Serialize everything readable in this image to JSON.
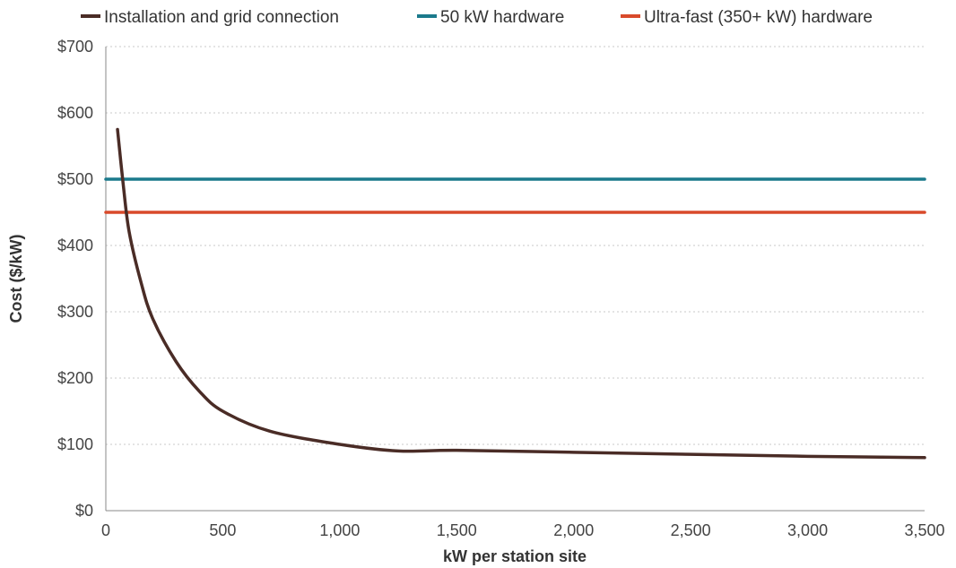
{
  "chart_data": {
    "type": "line",
    "title": "",
    "xlabel": "kW per station site",
    "ylabel": "Cost ($/kW)",
    "xlim": [
      0,
      3500
    ],
    "ylim": [
      0,
      700
    ],
    "x_ticks": [
      0,
      500,
      1000,
      1500,
      2000,
      2500,
      3000,
      3500
    ],
    "x_tick_labels": [
      "0",
      "500",
      "1,000",
      "1,500",
      "2,000",
      "2,500",
      "3,000",
      "3,500"
    ],
    "y_ticks": [
      0,
      100,
      200,
      300,
      400,
      500,
      600,
      700
    ],
    "y_tick_labels": [
      "$0",
      "$100",
      "$200",
      "$300",
      "$400",
      "$500",
      "$600",
      "$700"
    ],
    "grid": true,
    "legend_position": "top",
    "series": [
      {
        "name": "Installation and grid connection",
        "color": "#4a2c26",
        "x": [
          50,
          75,
          100,
          150,
          200,
          300,
          400,
          500,
          700,
          1000,
          1250,
          1500,
          2000,
          2500,
          3000,
          3500
        ],
        "y": [
          575,
          490,
          420,
          345,
          290,
          225,
          180,
          150,
          120,
          100,
          90,
          91,
          88,
          85,
          82,
          80
        ]
      },
      {
        "name": "50 kW hardware",
        "color": "#1b7a8c",
        "x": [
          0,
          3500
        ],
        "y": [
          500,
          500
        ]
      },
      {
        "name": "Ultra-fast (350+ kW) hardware",
        "color": "#d94a2b",
        "x": [
          0,
          3500
        ],
        "y": [
          450,
          450
        ]
      }
    ]
  }
}
